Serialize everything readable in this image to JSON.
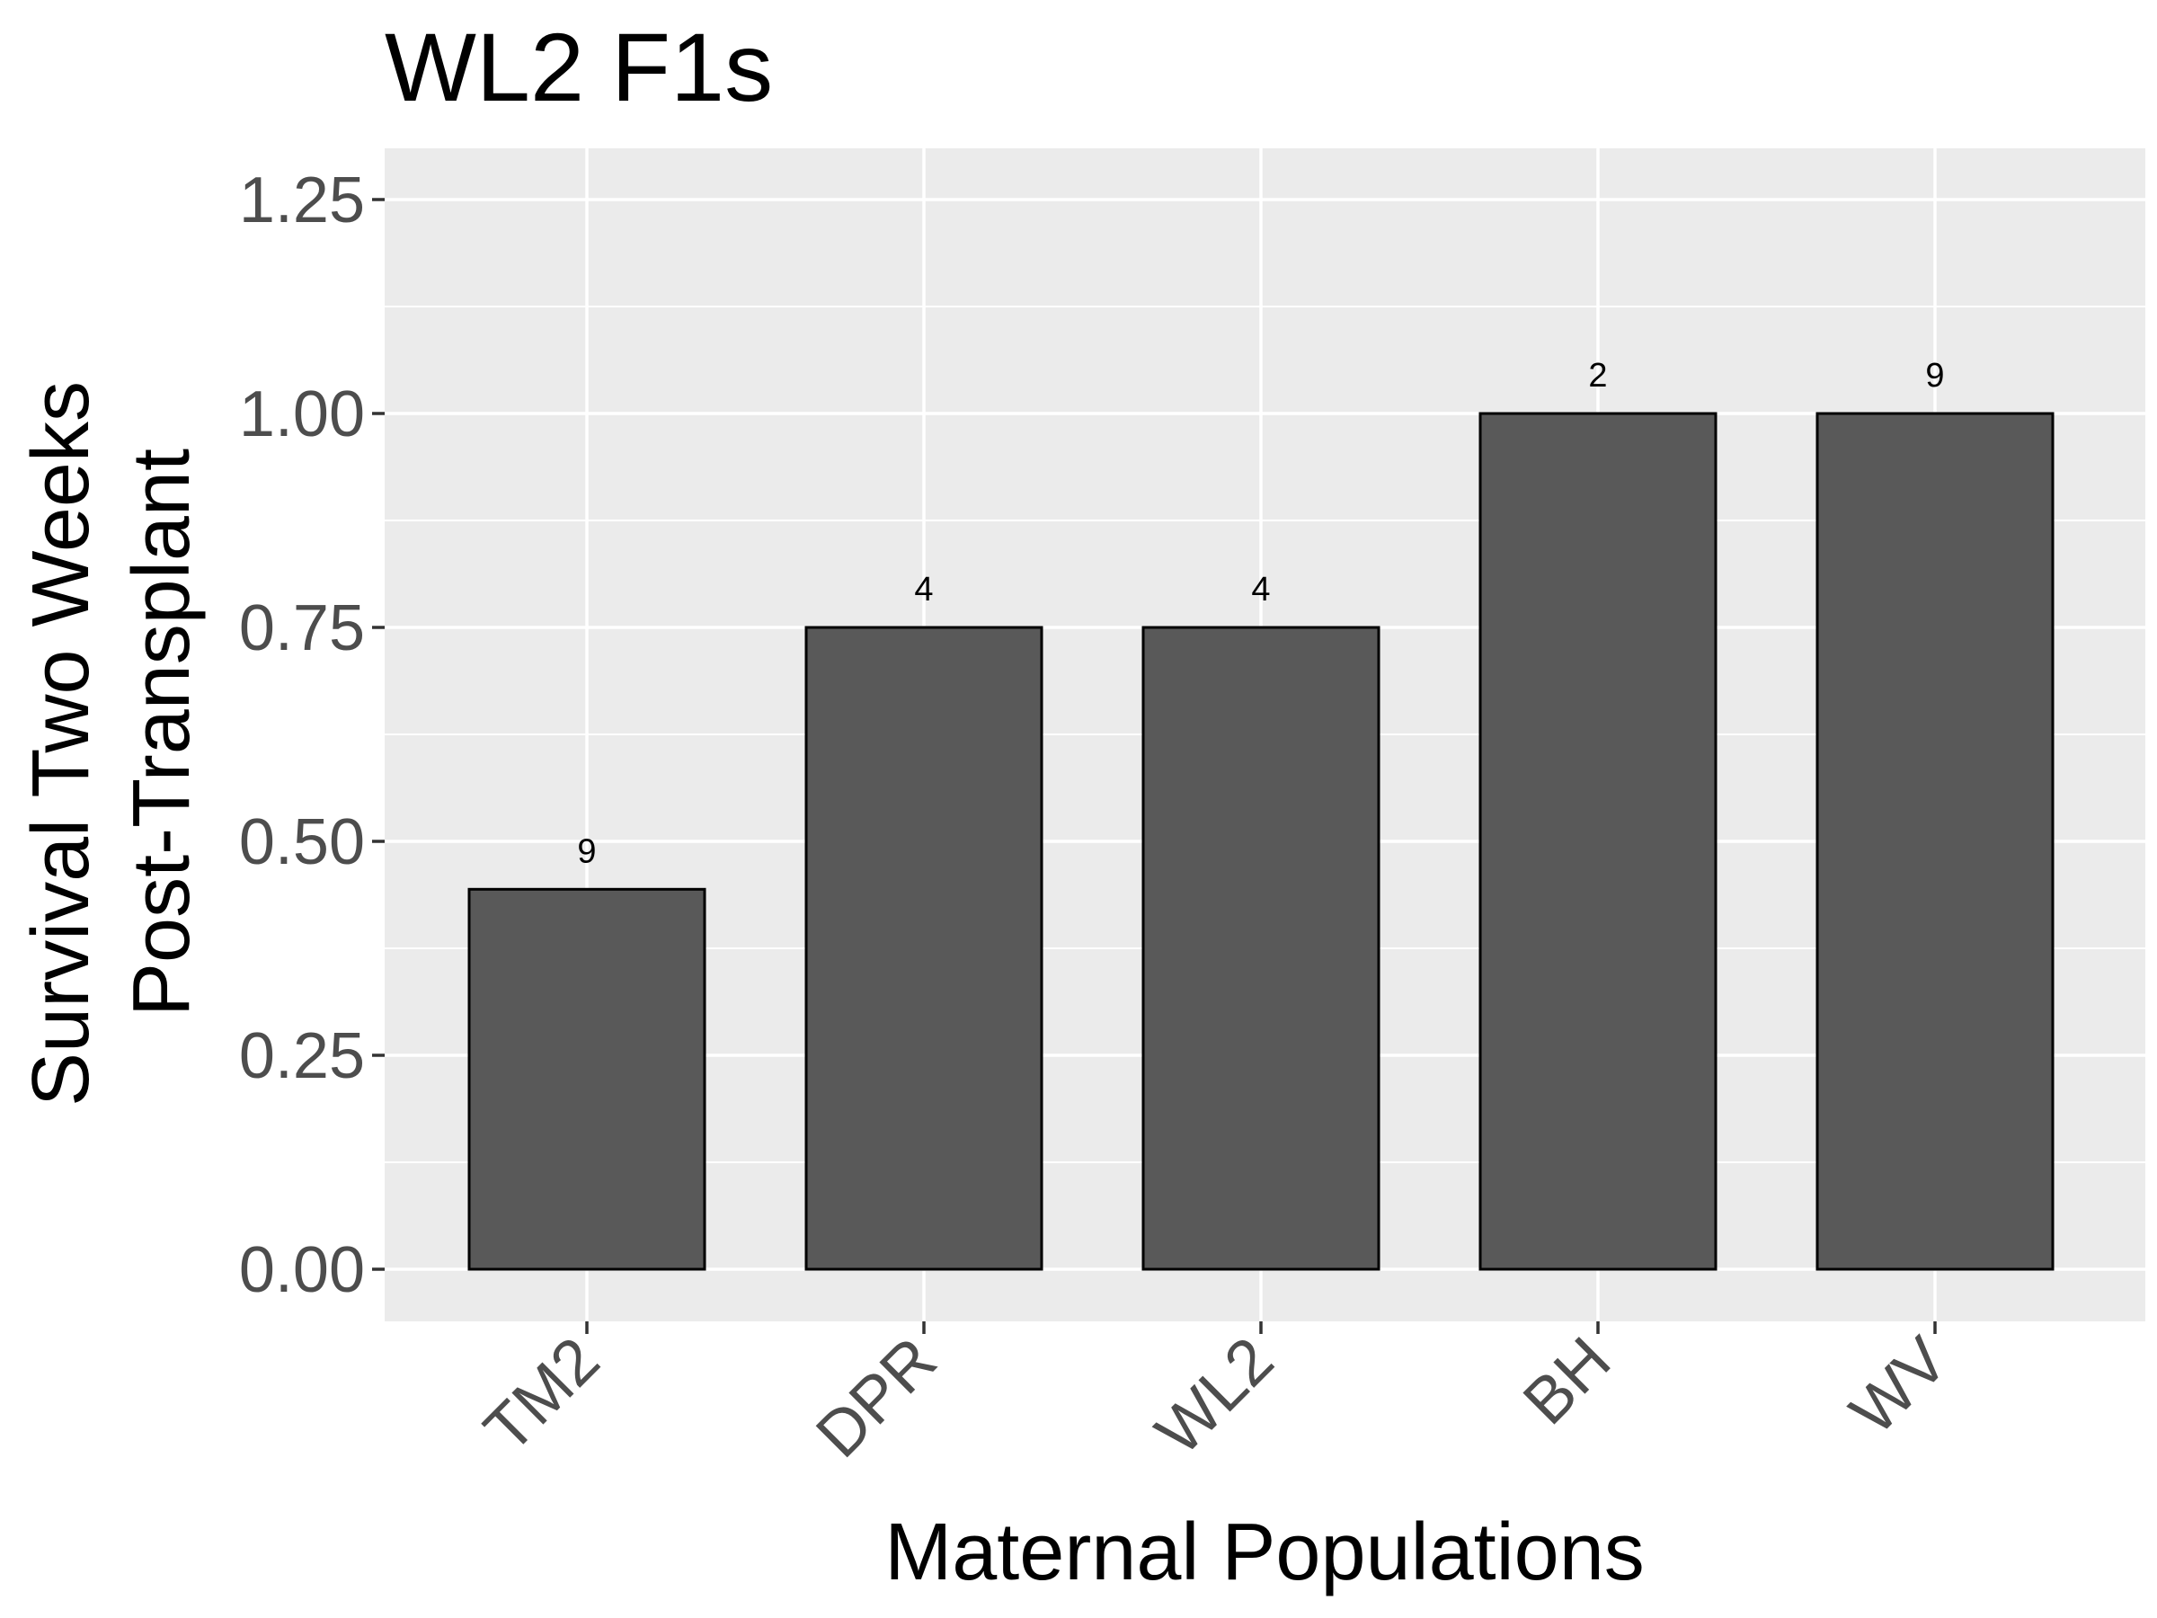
{
  "chart_data": {
    "type": "bar",
    "title": "WL2 F1s",
    "xlabel": "Maternal Populations",
    "ylabel_lines": [
      "Survival Two Weeks",
      "Post-Transplant"
    ],
    "categories": [
      "TM2",
      "DPR",
      "WL2",
      "BH",
      "WV"
    ],
    "values": [
      0.444,
      0.75,
      0.75,
      1.0,
      1.0
    ],
    "data_labels": [
      "9",
      "4",
      "4",
      "2",
      "9"
    ],
    "ylim": [
      -0.06,
      1.31
    ],
    "yticks": [
      0,
      0.25,
      0.5,
      0.75,
      1.0,
      1.25
    ],
    "ytick_labels": [
      "0.00",
      "0.25",
      "0.50",
      "0.75",
      "1.00",
      "1.25"
    ],
    "grid": true,
    "legend": "none",
    "colors": {
      "bar_fill": "#595959",
      "bar_stroke": "#000000",
      "panel_background": "#ebebeb",
      "grid": "#ffffff",
      "tick_text": "#4d4d4d"
    }
  }
}
